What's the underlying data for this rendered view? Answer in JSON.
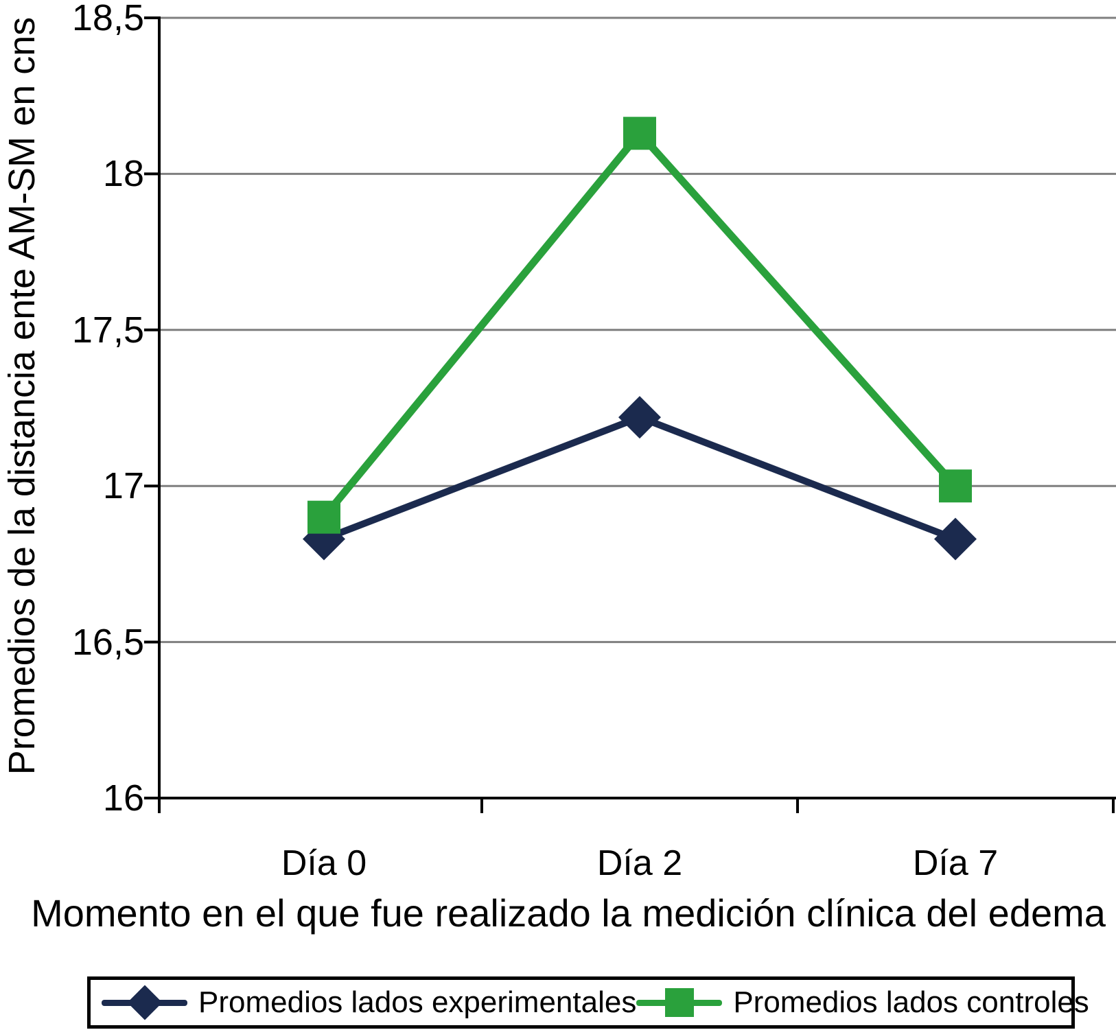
{
  "chart_data": {
    "type": "line",
    "xlabel": "Momento en el que fue realizado la medición clínica del edema",
    "ylabel": "Promedios de la distancia ente AM-SM en cns",
    "categories": [
      "Día 0",
      "Día 2",
      "Día 7"
    ],
    "series": [
      {
        "name": "Promedios lados experimentales",
        "values": [
          16.83,
          17.22,
          16.83
        ],
        "color": "#1b2a4e",
        "marker": "diamond",
        "line_width": 10
      },
      {
        "name": "Promedios lados controles",
        "values": [
          16.9,
          18.13,
          17.0
        ],
        "color": "#2aa13c",
        "marker": "square",
        "line_width": 11
      }
    ],
    "ylim": [
      16,
      18.5
    ],
    "yticks": [
      {
        "label": "18,5",
        "value": 18.5
      },
      {
        "label": "18",
        "value": 18
      },
      {
        "label": "17,5",
        "value": 17.5
      },
      {
        "label": "17",
        "value": 17
      },
      {
        "label": "16,5",
        "value": 16.5
      },
      {
        "label": "16",
        "value": 16
      }
    ],
    "grid": true,
    "legend_position": "bottom",
    "gridline_color": "#7f7f7f",
    "axis_color": "#000000"
  }
}
